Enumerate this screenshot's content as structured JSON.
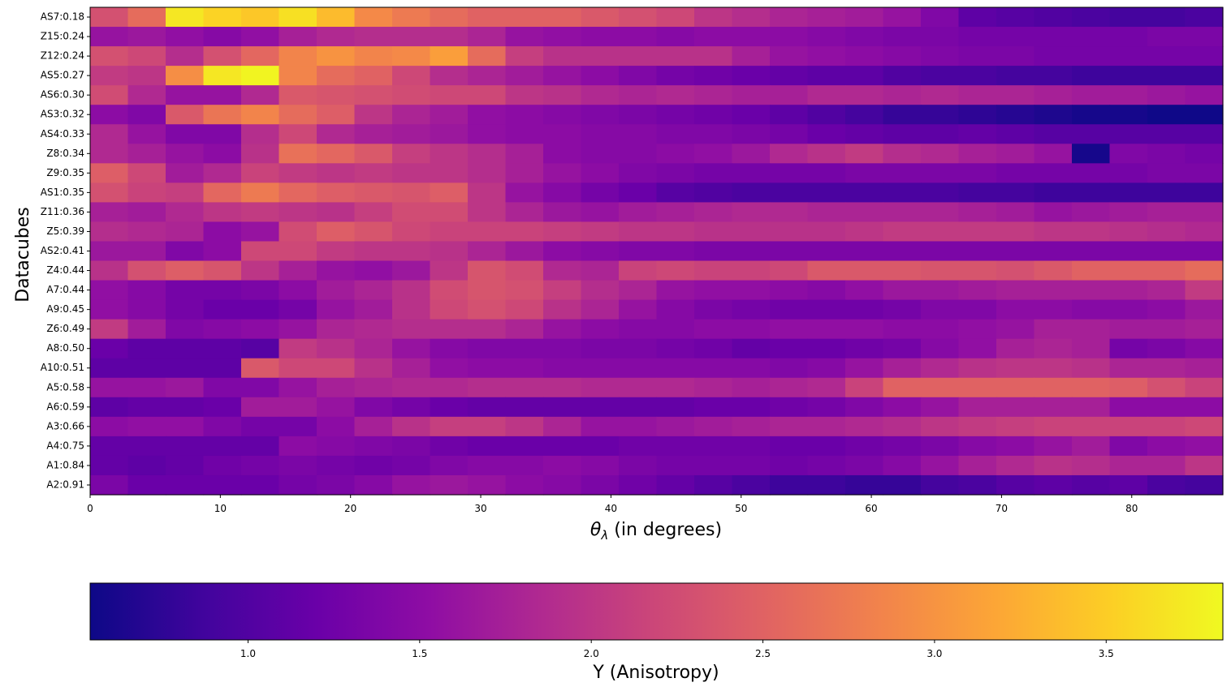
{
  "chart_data": {
    "type": "heatmap",
    "colormap": "plasma",
    "title": "",
    "xlabel_symbol": "θ",
    "xlabel_subscript": "λ",
    "xlabel_rest": " (in degrees)",
    "ylabel": "Datacubes",
    "colorbar_label": "Y (Anisotropy)",
    "colorbar_ticks": [
      "1.0",
      "1.5",
      "2.0",
      "2.5",
      "3.0",
      "3.5"
    ],
    "colorbar_range": [
      0.54,
      3.84
    ],
    "x_ticks": [
      "0",
      "10",
      "20",
      "30",
      "40",
      "50",
      "60",
      "70",
      "80"
    ],
    "x_range": [
      0,
      87
    ],
    "rows": [
      "AS7:0.18",
      "Z15:0.24",
      "Z12:0.24",
      "AS5:0.27",
      "AS6:0.30",
      "AS3:0.32",
      "AS4:0.33",
      "Z8:0.34",
      "Z9:0.35",
      "AS1:0.35",
      "Z11:0.36",
      "Z5:0.39",
      "AS2:0.41",
      "Z4:0.44",
      "A7:0.44",
      "A9:0.45",
      "Z6:0.49",
      "A8:0.50",
      "A10:0.51",
      "A5:0.58",
      "A6:0.59",
      "A3:0.66",
      "A4:0.75",
      "A1:0.84",
      "A2:0.91"
    ],
    "values": [
      [
        2.3,
        2.6,
        3.7,
        3.55,
        3.45,
        3.65,
        3.35,
        2.9,
        2.75,
        2.6,
        2.5,
        2.5,
        2.5,
        2.4,
        2.3,
        2.2,
        2.0,
        1.9,
        1.8,
        1.75,
        1.7,
        1.6,
        1.4,
        1.1,
        1.05,
        1.0,
        0.95,
        0.9,
        0.9,
        0.95
      ],
      [
        1.6,
        1.65,
        1.55,
        1.45,
        1.55,
        1.75,
        1.85,
        1.9,
        1.9,
        1.9,
        1.8,
        1.6,
        1.55,
        1.5,
        1.5,
        1.45,
        1.5,
        1.5,
        1.5,
        1.45,
        1.4,
        1.35,
        1.35,
        1.3,
        1.3,
        1.3,
        1.3,
        1.3,
        1.35,
        1.35
      ],
      [
        2.3,
        2.2,
        1.9,
        2.3,
        2.55,
        2.85,
        3.0,
        2.85,
        2.9,
        3.1,
        2.6,
        2.1,
        1.95,
        1.95,
        1.95,
        1.95,
        1.95,
        1.75,
        1.6,
        1.55,
        1.5,
        1.45,
        1.4,
        1.35,
        1.35,
        1.3,
        1.3,
        1.3,
        1.3,
        1.3
      ],
      [
        2.05,
        2.0,
        2.95,
        3.7,
        3.8,
        2.85,
        2.6,
        2.5,
        2.2,
        1.9,
        1.8,
        1.7,
        1.6,
        1.5,
        1.4,
        1.3,
        1.25,
        1.2,
        1.15,
        1.1,
        1.1,
        1.0,
        0.95,
        0.95,
        0.9,
        0.9,
        0.85,
        0.85,
        0.85,
        0.85
      ],
      [
        2.25,
        1.85,
        1.6,
        1.6,
        1.85,
        2.4,
        2.35,
        2.3,
        2.25,
        2.2,
        2.2,
        2.0,
        1.95,
        1.85,
        1.8,
        1.85,
        1.8,
        1.75,
        1.75,
        1.85,
        1.85,
        1.8,
        1.85,
        1.8,
        1.8,
        1.75,
        1.7,
        1.7,
        1.65,
        1.6
      ],
      [
        1.5,
        1.4,
        2.4,
        2.7,
        2.85,
        2.6,
        2.45,
        2.0,
        1.8,
        1.7,
        1.55,
        1.5,
        1.45,
        1.4,
        1.35,
        1.3,
        1.25,
        1.2,
        1.1,
        1.0,
        0.9,
        0.8,
        0.8,
        0.75,
        0.7,
        0.65,
        0.6,
        0.6,
        0.55,
        0.55
      ],
      [
        1.85,
        1.6,
        1.4,
        1.4,
        1.9,
        2.2,
        1.85,
        1.75,
        1.7,
        1.65,
        1.55,
        1.5,
        1.5,
        1.45,
        1.45,
        1.4,
        1.4,
        1.35,
        1.3,
        1.2,
        1.15,
        1.1,
        1.1,
        1.15,
        1.1,
        1.05,
        1.05,
        1.05,
        1.05,
        1.05
      ],
      [
        1.85,
        1.75,
        1.6,
        1.5,
        1.95,
        2.65,
        2.55,
        2.4,
        2.1,
        2.0,
        1.9,
        1.75,
        1.5,
        1.45,
        1.45,
        1.5,
        1.55,
        1.65,
        1.85,
        1.95,
        2.05,
        1.9,
        1.85,
        1.75,
        1.7,
        1.6,
        0.6,
        1.4,
        1.35,
        1.3
      ],
      [
        2.45,
        2.2,
        1.7,
        1.85,
        2.15,
        2.05,
        2.0,
        2.05,
        2.0,
        2.0,
        1.9,
        1.75,
        1.6,
        1.5,
        1.4,
        1.35,
        1.3,
        1.3,
        1.3,
        1.3,
        1.35,
        1.35,
        1.35,
        1.35,
        1.3,
        1.3,
        1.3,
        1.3,
        1.35,
        1.35
      ],
      [
        2.3,
        2.15,
        2.1,
        2.55,
        2.75,
        2.55,
        2.45,
        2.4,
        2.35,
        2.45,
        2.0,
        1.6,
        1.45,
        1.3,
        1.2,
        1.05,
        1.0,
        0.95,
        0.95,
        0.95,
        0.95,
        0.95,
        0.95,
        0.9,
        0.9,
        0.85,
        0.85,
        0.85,
        0.85,
        0.85
      ],
      [
        1.75,
        1.7,
        1.85,
        2.0,
        2.05,
        2.0,
        1.95,
        2.1,
        2.25,
        2.25,
        2.0,
        1.8,
        1.65,
        1.6,
        1.7,
        1.75,
        1.8,
        1.85,
        1.85,
        1.8,
        1.8,
        1.8,
        1.8,
        1.75,
        1.7,
        1.6,
        1.65,
        1.7,
        1.75,
        1.75
      ],
      [
        1.9,
        1.85,
        1.8,
        1.5,
        1.6,
        2.25,
        2.45,
        2.35,
        2.2,
        2.15,
        2.15,
        2.15,
        2.1,
        2.05,
        2.0,
        2.0,
        1.95,
        1.95,
        1.95,
        1.95,
        2.0,
        2.05,
        2.05,
        2.05,
        2.05,
        2.0,
        2.0,
        1.95,
        1.9,
        1.85
      ],
      [
        1.65,
        1.65,
        1.4,
        1.5,
        2.2,
        2.2,
        2.05,
        2.0,
        2.0,
        1.95,
        1.8,
        1.65,
        1.5,
        1.45,
        1.4,
        1.4,
        1.35,
        1.35,
        1.35,
        1.35,
        1.35,
        1.35,
        1.35,
        1.35,
        1.35,
        1.35,
        1.35,
        1.35,
        1.35,
        1.35
      ],
      [
        1.95,
        2.3,
        2.45,
        2.35,
        2.0,
        1.75,
        1.6,
        1.55,
        1.65,
        2.0,
        2.35,
        2.25,
        1.85,
        1.8,
        2.15,
        2.2,
        2.15,
        2.15,
        2.2,
        2.4,
        2.4,
        2.4,
        2.35,
        2.35,
        2.3,
        2.4,
        2.5,
        2.5,
        2.5,
        2.6
      ],
      [
        1.55,
        1.45,
        1.3,
        1.3,
        1.35,
        1.5,
        1.7,
        1.8,
        1.95,
        2.25,
        2.35,
        2.3,
        2.1,
        1.9,
        1.8,
        1.6,
        1.55,
        1.55,
        1.5,
        1.45,
        1.55,
        1.65,
        1.65,
        1.7,
        1.75,
        1.75,
        1.75,
        1.75,
        1.8,
        2.05
      ],
      [
        1.55,
        1.45,
        1.3,
        1.2,
        1.2,
        1.3,
        1.6,
        1.7,
        1.95,
        2.2,
        2.3,
        2.2,
        1.95,
        1.8,
        1.6,
        1.45,
        1.35,
        1.3,
        1.25,
        1.25,
        1.25,
        1.3,
        1.4,
        1.4,
        1.5,
        1.5,
        1.45,
        1.45,
        1.5,
        1.65
      ],
      [
        2.05,
        1.7,
        1.4,
        1.45,
        1.5,
        1.6,
        1.8,
        1.85,
        1.9,
        1.9,
        1.9,
        1.8,
        1.6,
        1.5,
        1.45,
        1.45,
        1.5,
        1.5,
        1.55,
        1.55,
        1.55,
        1.5,
        1.5,
        1.55,
        1.6,
        1.75,
        1.75,
        1.7,
        1.7,
        1.75
      ],
      [
        1.2,
        1.1,
        1.1,
        1.1,
        1.05,
        2.05,
        1.95,
        1.8,
        1.6,
        1.45,
        1.4,
        1.4,
        1.4,
        1.35,
        1.35,
        1.3,
        1.25,
        1.15,
        1.2,
        1.2,
        1.25,
        1.3,
        1.45,
        1.55,
        1.75,
        1.8,
        1.75,
        1.3,
        1.35,
        1.45
      ],
      [
        1.1,
        1.1,
        1.1,
        1.1,
        2.4,
        2.2,
        2.2,
        1.95,
        1.75,
        1.55,
        1.5,
        1.5,
        1.45,
        1.45,
        1.45,
        1.45,
        1.45,
        1.45,
        1.4,
        1.45,
        1.6,
        1.75,
        1.85,
        1.95,
        2.0,
        2.0,
        1.95,
        1.8,
        1.8,
        1.75
      ],
      [
        1.6,
        1.6,
        1.65,
        1.4,
        1.4,
        1.6,
        1.75,
        1.8,
        1.85,
        1.85,
        1.9,
        1.9,
        1.9,
        1.85,
        1.85,
        1.85,
        1.8,
        1.75,
        1.8,
        1.85,
        2.15,
        2.5,
        2.5,
        2.5,
        2.5,
        2.5,
        2.5,
        2.45,
        2.3,
        2.15
      ],
      [
        1.1,
        1.15,
        1.15,
        1.2,
        1.7,
        1.7,
        1.6,
        1.4,
        1.3,
        1.2,
        1.15,
        1.15,
        1.15,
        1.15,
        1.15,
        1.15,
        1.2,
        1.2,
        1.25,
        1.3,
        1.4,
        1.5,
        1.6,
        1.75,
        1.75,
        1.75,
        1.75,
        1.5,
        1.5,
        1.5
      ],
      [
        1.5,
        1.55,
        1.55,
        1.4,
        1.3,
        1.3,
        1.5,
        1.75,
        1.95,
        2.1,
        2.1,
        2.0,
        1.8,
        1.6,
        1.6,
        1.65,
        1.7,
        1.75,
        1.8,
        1.8,
        1.85,
        1.9,
        2.0,
        2.05,
        2.1,
        2.15,
        2.15,
        2.15,
        2.15,
        2.2
      ],
      [
        1.15,
        1.15,
        1.15,
        1.15,
        1.15,
        1.5,
        1.45,
        1.4,
        1.35,
        1.25,
        1.2,
        1.2,
        1.2,
        1.2,
        1.25,
        1.25,
        1.25,
        1.25,
        1.2,
        1.2,
        1.25,
        1.3,
        1.35,
        1.45,
        1.5,
        1.6,
        1.7,
        1.4,
        1.5,
        1.55
      ],
      [
        1.15,
        1.1,
        1.15,
        1.25,
        1.3,
        1.35,
        1.3,
        1.25,
        1.3,
        1.4,
        1.45,
        1.45,
        1.5,
        1.45,
        1.35,
        1.3,
        1.3,
        1.3,
        1.25,
        1.3,
        1.35,
        1.45,
        1.6,
        1.75,
        1.85,
        1.95,
        1.9,
        1.8,
        1.8,
        2.0
      ],
      [
        1.35,
        1.2,
        1.2,
        1.2,
        1.2,
        1.3,
        1.35,
        1.45,
        1.6,
        1.65,
        1.6,
        1.5,
        1.45,
        1.35,
        1.25,
        1.15,
        1.05,
        0.95,
        0.85,
        0.85,
        0.8,
        0.8,
        0.9,
        0.95,
        1.05,
        1.1,
        1.05,
        1.1,
        0.95,
        0.9
      ]
    ]
  }
}
